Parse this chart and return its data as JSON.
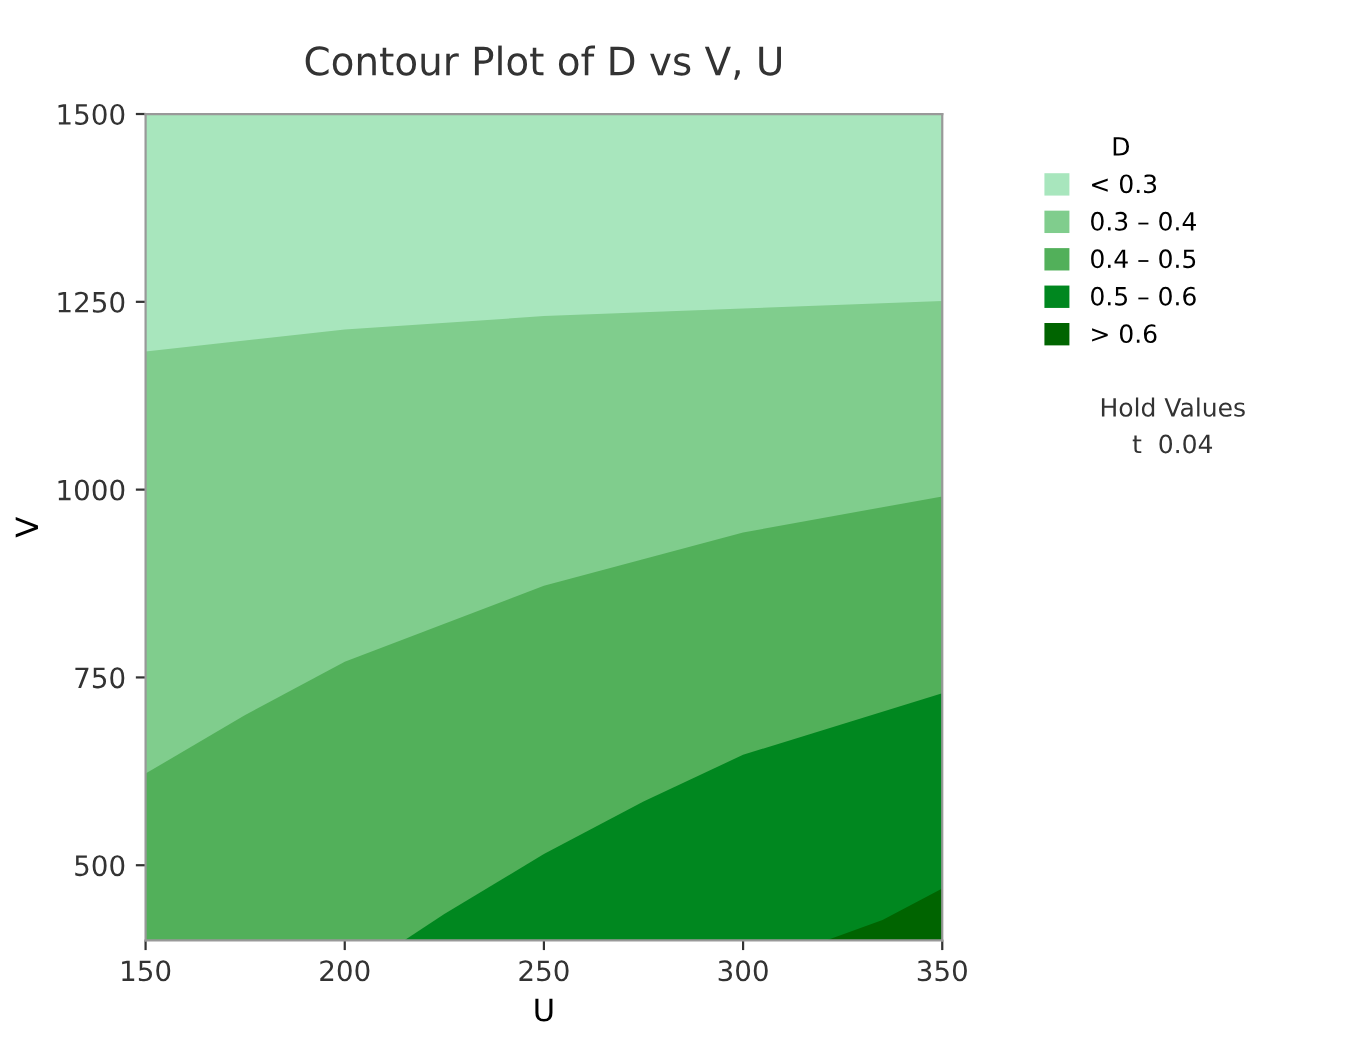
{
  "chart_data": {
    "type": "area",
    "title": "Contour Plot of D vs V, U",
    "xlabel": "U",
    "ylabel": "V",
    "legend_title": "D",
    "legend": "right",
    "xlim": [
      150,
      350
    ],
    "xticks": [
      150,
      200,
      250,
      300,
      350
    ],
    "ylim": [
      400,
      1500
    ],
    "yticks": [
      500,
      750,
      1000,
      1250,
      1500
    ],
    "grid": false,
    "series": [
      {
        "name": "< 0.3",
        "color": "#a8e6bd",
        "x": [
          150,
          350
        ],
        "values": [
          1500,
          1500
        ]
      },
      {
        "name": "0.3 – 0.4",
        "color": "#80cd8d",
        "x": [
          150,
          200,
          250,
          300,
          350
        ],
        "values": [
          1184,
          1213,
          1231,
          1241,
          1251
        ]
      },
      {
        "name": "0.4 – 0.5",
        "color": "#52b05a",
        "x": [
          150,
          175,
          200,
          250,
          300,
          350
        ],
        "values": [
          622,
          700,
          771,
          872,
          943,
          991
        ]
      },
      {
        "name": "0.5 – 0.6",
        "color": "#00871f",
        "x": [
          215,
          225,
          250,
          275,
          300,
          350
        ],
        "values": [
          400,
          435,
          515,
          585,
          647,
          729
        ]
      },
      {
        "name": "> 0.6",
        "color": "#006400",
        "x": [
          321,
          335,
          350
        ],
        "values": [
          400,
          427,
          469
        ]
      }
    ],
    "annotations": [
      "Hold Values",
      "t  0.04"
    ]
  }
}
